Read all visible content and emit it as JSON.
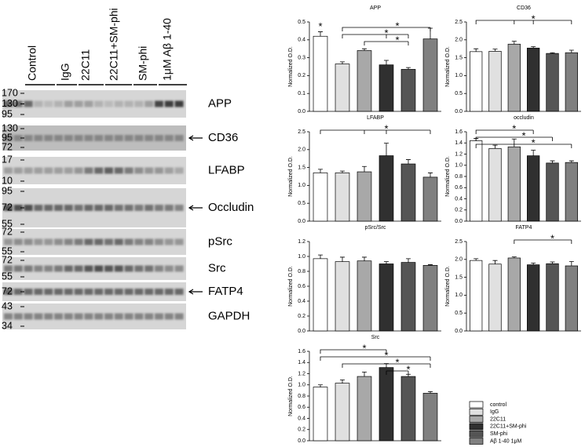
{
  "blot": {
    "lanes": [
      "Control",
      "IgG",
      "22C11",
      "22C11+SM-phi",
      "SM-phi",
      "1μM Aβ 1-40"
    ],
    "rows": [
      {
        "name": "APP",
        "mw": [
          "170",
          "130",
          "95"
        ],
        "arrow": false
      },
      {
        "name": "CD36",
        "mw": [
          "130",
          "95",
          "72"
        ],
        "arrow": true
      },
      {
        "name": "LFABP",
        "mw": [
          "17",
          "10"
        ],
        "arrow": false
      },
      {
        "name": "Occludin",
        "mw": [
          "95",
          "72",
          "55"
        ],
        "arrow": true
      },
      {
        "name": "pSrc",
        "mw": [
          "72",
          "55"
        ],
        "arrow": false
      },
      {
        "name": "Src",
        "mw": [
          "72",
          "55"
        ],
        "arrow": false
      },
      {
        "name": "FATP4",
        "mw": [
          "72"
        ],
        "arrow": true
      },
      {
        "name": "GAPDH",
        "mw": [
          "43",
          "34"
        ],
        "arrow": false
      }
    ]
  },
  "legend": [
    {
      "name": "control",
      "color": "#ffffff"
    },
    {
      "name": "IgG",
      "color": "#e0e0e0"
    },
    {
      "name": "22C11",
      "color": "#a8a8a8"
    },
    {
      "name": "22C11+SM-phi",
      "color": "#303030"
    },
    {
      "name": "SM-phi",
      "color": "#555555"
    },
    {
      "name": "Aβ 1-40 1μM",
      "color": "#808080"
    }
  ],
  "chart_data": [
    {
      "type": "bar",
      "title": "APP",
      "ylabel": "Normalized O.D.",
      "values": [
        0.42,
        0.265,
        0.34,
        0.26,
        0.235,
        0.405
      ],
      "errors": [
        0.025,
        0.012,
        0.01,
        0.025,
        0.01,
        0.06
      ],
      "ylim": [
        0,
        0.5
      ],
      "yticks": [
        {
          "value": 0,
          "label": "0.0"
        },
        0.1,
        0.2,
        0.3,
        0.4,
        0.5
      ],
      "significance": [
        {
          "from": 0,
          "to": [],
          "label": "*"
        },
        {
          "from": 1,
          "to": [
            5
          ],
          "label": "*"
        },
        {
          "from": 1,
          "to": [
            3,
            4
          ],
          "label": "*"
        },
        {
          "from": 2,
          "to": [
            4
          ],
          "label": "*"
        }
      ]
    },
    {
      "type": "bar",
      "title": "CD36",
      "ylabel": "Normalized O.D.",
      "values": [
        1.67,
        1.68,
        1.88,
        1.77,
        1.62,
        1.64
      ],
      "errors": [
        0.08,
        0.06,
        0.08,
        0.04,
        0.02,
        0.07
      ],
      "ylim": [
        0,
        2.5
      ],
      "yticks": [
        {
          "value": 0,
          "label": "0.0"
        },
        0.5,
        {
          "value": 1,
          "label": "1.0"
        },
        1.5,
        {
          "value": 2,
          "label": "2.0"
        },
        2.5
      ],
      "significance": [
        {
          "from": 0,
          "to": [
            2,
            3,
            5
          ],
          "label": "*"
        }
      ]
    },
    {
      "type": "bar",
      "title": "LFABP",
      "ylabel": "Normalized O.D.",
      "values": [
        1.35,
        1.35,
        1.38,
        1.83,
        1.6,
        1.23
      ],
      "errors": [
        0.1,
        0.05,
        0.15,
        0.35,
        0.12,
        0.12
      ],
      "ylim": [
        0,
        2.5
      ],
      "yticks": [
        {
          "value": 0,
          "label": "0.0"
        },
        0.5,
        {
          "value": 1,
          "label": "1.0"
        },
        1.5,
        {
          "value": 2,
          "label": "2.0"
        },
        2.5
      ],
      "significance": [
        {
          "from": 0,
          "to": [
            2,
            3,
            5
          ],
          "label": "*"
        }
      ]
    },
    {
      "type": "bar",
      "title": "occludin",
      "ylabel": "Normalized O.D.",
      "values": [
        1.44,
        1.3,
        1.33,
        1.17,
        1.04,
        1.05
      ],
      "errors": [
        0.04,
        0.06,
        0.14,
        0.1,
        0.04,
        0.03
      ],
      "ylim": [
        0,
        1.6
      ],
      "yticks": [
        {
          "value": 0,
          "label": "0.0"
        },
        0.2,
        0.4,
        0.6,
        0.8,
        {
          "value": 1,
          "label": "1.0"
        },
        1.2,
        1.4,
        1.6
      ],
      "significance": [
        {
          "from": 0,
          "to": [
            3
          ],
          "label": "*"
        },
        {
          "from": 0,
          "to": [
            4
          ],
          "label": "*"
        },
        {
          "from": 0,
          "to": [
            5
          ],
          "label": "*"
        }
      ]
    },
    {
      "type": "bar",
      "title": "pSrc/Src",
      "ylabel": "Normalized O.D.",
      "values": [
        0.97,
        0.93,
        0.94,
        0.9,
        0.92,
        0.88
      ],
      "errors": [
        0.05,
        0.06,
        0.05,
        0.03,
        0.05,
        0.01
      ],
      "ylim": [
        0,
        1.2
      ],
      "yticks": [
        {
          "value": 0,
          "label": "0.0"
        },
        0.2,
        0.4,
        0.6,
        0.8,
        {
          "value": 1,
          "label": "1.0"
        },
        1.2
      ],
      "significance": []
    },
    {
      "type": "bar",
      "title": "FATP4",
      "ylabel": "Normalized O.D.",
      "values": [
        1.97,
        1.87,
        2.04,
        1.85,
        1.88,
        1.82
      ],
      "errors": [
        0.05,
        0.1,
        0.03,
        0.05,
        0.05,
        0.12
      ],
      "ylim": [
        0,
        2.5
      ],
      "yticks": [
        {
          "value": 0,
          "label": "0.0"
        },
        0.5,
        {
          "value": 1,
          "label": "1.0"
        },
        1.5,
        {
          "value": 2,
          "label": "2.0"
        },
        2.5
      ],
      "significance": [
        {
          "from": 2,
          "to": [
            5
          ],
          "label": "*"
        }
      ]
    },
    {
      "type": "bar",
      "title": "Src",
      "ylabel": "Normalized O.D.",
      "values": [
        0.96,
        1.03,
        1.15,
        1.31,
        1.15,
        0.85
      ],
      "errors": [
        0.04,
        0.06,
        0.08,
        0.07,
        0.04,
        0.03
      ],
      "ylim": [
        0,
        1.6
      ],
      "yticks": [
        {
          "value": 0,
          "label": "0.0"
        },
        0.2,
        0.4,
        0.6,
        0.8,
        {
          "value": 1,
          "label": "1.0"
        },
        1.2,
        1.4,
        1.6
      ],
      "significance": [
        {
          "from": 0,
          "to": [
            3
          ],
          "label": "*"
        },
        {
          "from": 0,
          "to": [
            5
          ],
          "label": "*"
        },
        {
          "from": 1,
          "to": [
            5
          ],
          "label": "*"
        },
        {
          "from": 3,
          "to": [
            4
          ],
          "label": "*"
        }
      ]
    }
  ]
}
